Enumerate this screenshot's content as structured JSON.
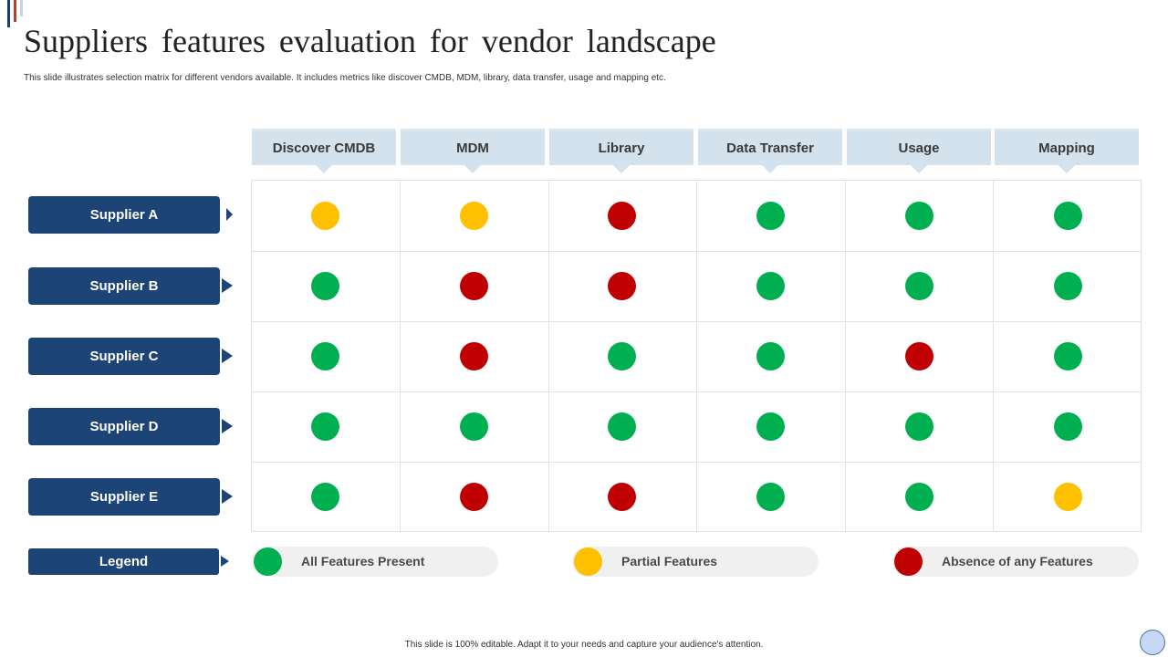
{
  "slide": {
    "title": "Suppliers features evaluation for vendor landscape",
    "subtitle": "This slide illustrates selection matrix for different vendors available. It includes metrics like discover CMDB, MDM,  library, data transfer, usage and mapping etc.",
    "footer": "This slide is 100% editable. Adapt it to your needs and capture your audience's attention."
  },
  "colors": {
    "present": "#00b050",
    "partial": "#ffc000",
    "absent": "#c00000",
    "supplier_label": "#1d4476",
    "column_header": "#d3e2ec"
  },
  "columns": [
    "Discover CMDB",
    "MDM",
    "Library",
    "Data Transfer",
    "Usage",
    "Mapping"
  ],
  "suppliers": [
    {
      "name": "Supplier A",
      "ratings": [
        "partial",
        "partial",
        "absent",
        "present",
        "present",
        "present"
      ]
    },
    {
      "name": "Supplier B",
      "ratings": [
        "present",
        "absent",
        "absent",
        "present",
        "present",
        "present"
      ]
    },
    {
      "name": "Supplier C",
      "ratings": [
        "present",
        "absent",
        "present",
        "present",
        "absent",
        "present"
      ]
    },
    {
      "name": "Supplier D",
      "ratings": [
        "present",
        "present",
        "present",
        "present",
        "present",
        "present"
      ]
    },
    {
      "name": "Supplier E",
      "ratings": [
        "present",
        "absent",
        "absent",
        "present",
        "present",
        "partial"
      ]
    }
  ],
  "legend": {
    "label": "Legend",
    "items": [
      {
        "status": "present",
        "text": "All Features Present"
      },
      {
        "status": "partial",
        "text": "Partial Features"
      },
      {
        "status": "absent",
        "text": "Absence of any Features"
      }
    ]
  }
}
